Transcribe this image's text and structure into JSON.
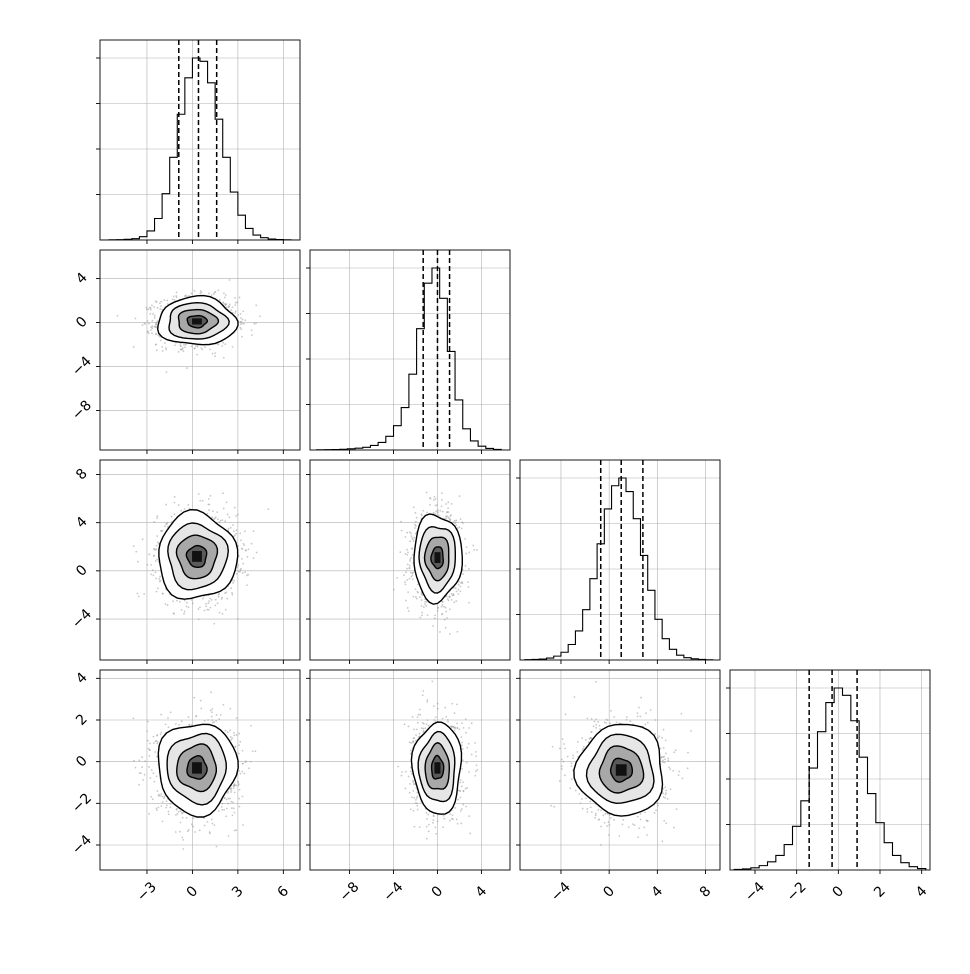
{
  "chart_data": {
    "type": "corner",
    "grid": true,
    "dimensions": [
      {
        "ticks": [
          -3,
          0,
          3,
          6
        ],
        "tick_labels": [
          "−3",
          "0",
          "3",
          "6"
        ],
        "range": [
          -6.1,
          7.1
        ],
        "mean": 0.4,
        "sd": 1.2,
        "quantiles": [
          -0.9,
          0.4,
          1.6
        ]
      },
      {
        "ticks": [
          -8,
          -4,
          0,
          4
        ],
        "tick_labels": [
          "−8",
          "−4",
          "0",
          "4"
        ],
        "range": [
          -11.6,
          6.6
        ],
        "mean": 0,
        "sd": 1.1,
        "quantiles": [
          -1.3,
          0.0,
          1.1
        ]
      },
      {
        "ticks": [
          -4,
          0,
          4,
          8
        ],
        "tick_labels": [
          "−4",
          "0",
          "4",
          "8"
        ],
        "range": [
          -7.4,
          9.2
        ],
        "mean": 1.1,
        "sd": 1.8,
        "quantiles": [
          -0.7,
          1.0,
          2.8
        ]
      },
      {
        "ticks": [
          -4,
          -2,
          0,
          2,
          4
        ],
        "tick_labels": [
          "−4",
          "−2",
          "0",
          "2",
          "4"
        ],
        "range": [
          -5.2,
          4.4
        ],
        "mean": -0.3,
        "sd": 1.1,
        "quantiles": [
          -1.4,
          -0.3,
          0.9
        ]
      }
    ],
    "histograms": [
      {
        "dim": 0,
        "bins": [
          -6.0,
          -5.5,
          -5.0,
          -4.5,
          -4.0,
          -3.5,
          -3.0,
          -2.5,
          -2.0,
          -1.5,
          -1.0,
          -0.5,
          0.0,
          0.5,
          1.0,
          1.5,
          2.0,
          2.5,
          3.0,
          3.5,
          4.0,
          4.5,
          5.0,
          5.5,
          6.0,
          6.5,
          7.0
        ],
        "counts": [
          0,
          1,
          2,
          4,
          8,
          20,
          55,
          130,
          280,
          500,
          760,
          980,
          1100,
          1080,
          950,
          730,
          500,
          290,
          150,
          70,
          30,
          14,
          6,
          3,
          1,
          0
        ]
      },
      {
        "dim": 1,
        "bins": [
          -11.0,
          -10.3,
          -9.6,
          -8.9,
          -8.2,
          -7.5,
          -6.8,
          -6.1,
          -5.4,
          -4.7,
          -4.0,
          -3.3,
          -2.6,
          -1.9,
          -1.2,
          -0.5,
          0.2,
          0.9,
          1.6,
          2.3,
          3.0,
          3.7,
          4.4,
          5.1,
          5.8
        ],
        "counts": [
          1,
          2,
          3,
          5,
          8,
          12,
          18,
          30,
          50,
          90,
          160,
          280,
          500,
          800,
          1100,
          1200,
          1000,
          650,
          330,
          140,
          60,
          25,
          10,
          4
        ]
      },
      {
        "dim": 2,
        "bins": [
          -7.0,
          -6.4,
          -5.8,
          -5.2,
          -4.6,
          -4.0,
          -3.4,
          -2.8,
          -2.2,
          -1.6,
          -1.0,
          -0.4,
          0.2,
          0.8,
          1.4,
          2.0,
          2.6,
          3.2,
          3.8,
          4.4,
          5.0,
          5.6,
          6.2,
          6.8,
          7.4,
          8.0,
          8.6
        ],
        "counts": [
          2,
          3,
          5,
          10,
          20,
          40,
          80,
          150,
          260,
          420,
          600,
          780,
          900,
          940,
          870,
          730,
          540,
          360,
          210,
          110,
          55,
          25,
          12,
          6,
          3,
          1
        ]
      },
      {
        "dim": 3,
        "bins": [
          -5.0,
          -4.6,
          -4.2,
          -3.8,
          -3.4,
          -3.0,
          -2.6,
          -2.2,
          -1.8,
          -1.4,
          -1.0,
          -0.6,
          -0.2,
          0.2,
          0.6,
          1.0,
          1.4,
          1.8,
          2.2,
          2.6,
          3.0,
          3.4,
          3.8,
          4.2
        ],
        "counts": [
          3,
          6,
          12,
          24,
          45,
          80,
          140,
          240,
          380,
          560,
          760,
          920,
          1000,
          960,
          820,
          620,
          420,
          260,
          150,
          80,
          40,
          18,
          8
        ]
      }
    ],
    "pairs": [
      {
        "x": 0,
        "y": 1,
        "center": [
          0.3,
          0.1
        ],
        "spread": [
          1.3,
          1.1
        ]
      },
      {
        "x": 0,
        "y": 2,
        "center": [
          0.3,
          1.2
        ],
        "spread": [
          1.3,
          1.8
        ]
      },
      {
        "x": 1,
        "y": 2,
        "center": [
          0.0,
          1.1
        ],
        "spread": [
          1.1,
          1.8
        ]
      },
      {
        "x": 0,
        "y": 3,
        "center": [
          0.3,
          -0.3
        ],
        "spread": [
          1.3,
          1.1
        ]
      },
      {
        "x": 1,
        "y": 3,
        "center": [
          0.0,
          -0.3
        ],
        "spread": [
          1.1,
          1.1
        ]
      },
      {
        "x": 2,
        "y": 3,
        "center": [
          1.0,
          -0.4
        ],
        "spread": [
          1.8,
          1.1
        ]
      }
    ],
    "contour_levels_sigma": [
      0.5,
      1.0,
      1.5,
      2.0
    ],
    "colors": {
      "line": "#000000",
      "grid": "#b0b0b0",
      "points": "#9a9a9a",
      "frame": "#000000"
    }
  }
}
